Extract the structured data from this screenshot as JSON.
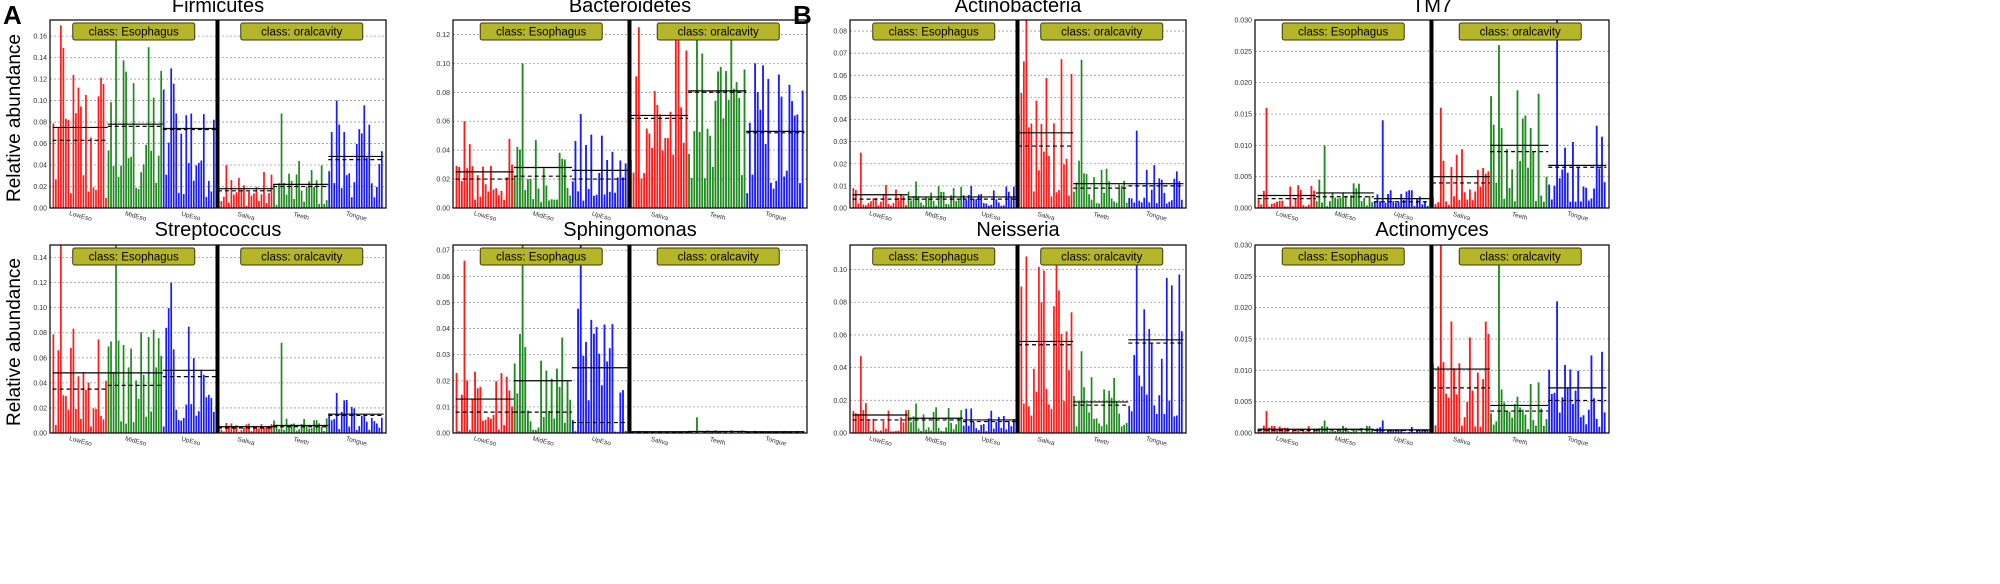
{
  "figure": {
    "panel_labels": [
      "A",
      "B"
    ],
    "ylabel": "Relative abundance",
    "class_labels": [
      "class: Esophagus",
      "class: oralcavity"
    ],
    "sample_groups": [
      "LowEso",
      "MidEso",
      "UpEso",
      "Saliva",
      "Teeth",
      "Tongue"
    ],
    "colors": {
      "red": "#ff1a1a",
      "green": "#1f8a1f",
      "blue": "#1a1aff",
      "badge": "#b5b52a",
      "badge_border": "#3a3a00"
    }
  },
  "chart_data": [
    {
      "type": "bar",
      "title": "Firmicutes",
      "yticks": [
        "0.00",
        "0.02",
        "0.04",
        "0.06",
        "0.08",
        "0.10",
        "0.12",
        "0.14",
        "0.16"
      ],
      "ylim": [
        0,
        0.175
      ],
      "categories": [
        "LowEso",
        "MidEso",
        "UpEso",
        "Saliva",
        "Teeth",
        "Tongue"
      ],
      "series": [
        {
          "name": "LowEso",
          "color": "red",
          "min": 0.005,
          "max": 0.17,
          "mean": 0.075,
          "median": 0.063
        },
        {
          "name": "MidEso",
          "color": "green",
          "min": 0.01,
          "max": 0.16,
          "mean": 0.078,
          "median": 0.076
        },
        {
          "name": "UpEso",
          "color": "blue",
          "min": 0.01,
          "max": 0.13,
          "mean": 0.074,
          "median": 0.073
        },
        {
          "name": "Saliva",
          "color": "red",
          "min": 0.002,
          "max": 0.04,
          "mean": 0.018,
          "median": 0.016
        },
        {
          "name": "Teeth",
          "color": "green",
          "min": 0.003,
          "max": 0.088,
          "mean": 0.022,
          "median": 0.02
        },
        {
          "name": "Tongue",
          "color": "blue",
          "min": 0.01,
          "max": 0.1,
          "mean": 0.048,
          "median": 0.045
        }
      ]
    },
    {
      "type": "bar",
      "title": "Bacteroidetes",
      "yticks": [
        "0.00",
        "0.02",
        "0.04",
        "0.06",
        "0.08",
        "0.10",
        "0.12"
      ],
      "ylim": [
        0,
        0.13
      ],
      "categories": [
        "LowEso",
        "MidEso",
        "UpEso",
        "Saliva",
        "Teeth",
        "Tongue"
      ],
      "series": [
        {
          "name": "LowEso",
          "color": "red",
          "min": 0.004,
          "max": 0.06,
          "mean": 0.025,
          "median": 0.02
        },
        {
          "name": "MidEso",
          "color": "green",
          "min": 0.004,
          "max": 0.1,
          "mean": 0.028,
          "median": 0.022
        },
        {
          "name": "UpEso",
          "color": "blue",
          "min": 0.004,
          "max": 0.065,
          "mean": 0.026,
          "median": 0.02
        },
        {
          "name": "Saliva",
          "color": "red",
          "min": 0.02,
          "max": 0.125,
          "mean": 0.064,
          "median": 0.062
        },
        {
          "name": "Teeth",
          "color": "green",
          "min": 0.02,
          "max": 0.12,
          "mean": 0.081,
          "median": 0.08
        },
        {
          "name": "Tongue",
          "color": "blue",
          "min": 0.01,
          "max": 0.1,
          "mean": 0.053,
          "median": 0.052
        }
      ]
    },
    {
      "type": "bar",
      "title": "Actinobacteria",
      "yticks": [
        "0.00",
        "0.01",
        "0.02",
        "0.03",
        "0.04",
        "0.05",
        "0.06",
        "0.07",
        "0.08"
      ],
      "ylim": [
        0,
        0.085
      ],
      "categories": [
        "LowEso",
        "MidEso",
        "UpEso",
        "Saliva",
        "Teeth",
        "Tongue"
      ],
      "series": [
        {
          "name": "LowEso",
          "color": "red",
          "min": 0.001,
          "max": 0.025,
          "mean": 0.006,
          "median": 0.004
        },
        {
          "name": "MidEso",
          "color": "green",
          "min": 0.001,
          "max": 0.012,
          "mean": 0.005,
          "median": 0.004
        },
        {
          "name": "UpEso",
          "color": "blue",
          "min": 0.001,
          "max": 0.01,
          "mean": 0.005,
          "median": 0.004
        },
        {
          "name": "Saliva",
          "color": "red",
          "min": 0.005,
          "max": 0.085,
          "mean": 0.034,
          "median": 0.028
        },
        {
          "name": "Teeth",
          "color": "green",
          "min": 0.002,
          "max": 0.067,
          "mean": 0.011,
          "median": 0.009
        },
        {
          "name": "Tongue",
          "color": "blue",
          "min": 0.002,
          "max": 0.035,
          "mean": 0.011,
          "median": 0.01
        }
      ]
    },
    {
      "type": "bar",
      "title": "TM7",
      "yticks": [
        "0.000",
        "0.005",
        "0.010",
        "0.015",
        "0.020",
        "0.025",
        "0.030"
      ],
      "ylim": [
        0,
        0.03
      ],
      "categories": [
        "LowEso",
        "MidEso",
        "UpEso",
        "Saliva",
        "Teeth",
        "Tongue"
      ],
      "series": [
        {
          "name": "LowEso",
          "color": "red",
          "min": 0.0002,
          "max": 0.016,
          "mean": 0.002,
          "median": 0.0015
        },
        {
          "name": "MidEso",
          "color": "green",
          "min": 0.0002,
          "max": 0.01,
          "mean": 0.0024,
          "median": 0.0018
        },
        {
          "name": "UpEso",
          "color": "blue",
          "min": 0.0002,
          "max": 0.014,
          "mean": 0.0015,
          "median": 0.001
        },
        {
          "name": "Saliva",
          "color": "red",
          "min": 0.0005,
          "max": 0.016,
          "mean": 0.005,
          "median": 0.004
        },
        {
          "name": "Teeth",
          "color": "green",
          "min": 0.001,
          "max": 0.026,
          "mean": 0.01,
          "median": 0.009
        },
        {
          "name": "Tongue",
          "color": "blue",
          "min": 0.001,
          "max": 0.03,
          "mean": 0.0068,
          "median": 0.0065
        }
      ]
    },
    {
      "type": "bar",
      "title": "Streptococcus",
      "yticks": [
        "0.00",
        "0.02",
        "0.04",
        "0.06",
        "0.08",
        "0.10",
        "0.12",
        "0.14"
      ],
      "ylim": [
        0,
        0.15
      ],
      "categories": [
        "LowEso",
        "MidEso",
        "UpEso",
        "Saliva",
        "Teeth",
        "Tongue"
      ],
      "series": [
        {
          "name": "LowEso",
          "color": "red",
          "min": 0.005,
          "max": 0.15,
          "mean": 0.048,
          "median": 0.035
        },
        {
          "name": "MidEso",
          "color": "green",
          "min": 0.005,
          "max": 0.15,
          "mean": 0.048,
          "median": 0.038
        },
        {
          "name": "UpEso",
          "color": "blue",
          "min": 0.005,
          "max": 0.12,
          "mean": 0.05,
          "median": 0.045
        },
        {
          "name": "Saliva",
          "color": "red",
          "min": 0.001,
          "max": 0.008,
          "mean": 0.005,
          "median": 0.004
        },
        {
          "name": "Teeth",
          "color": "green",
          "min": 0.001,
          "max": 0.072,
          "mean": 0.006,
          "median": 0.005
        },
        {
          "name": "Tongue",
          "color": "blue",
          "min": 0.002,
          "max": 0.032,
          "mean": 0.015,
          "median": 0.014
        }
      ]
    },
    {
      "type": "bar",
      "title": "Sphingomonas",
      "yticks": [
        "0.00",
        "0.01",
        "0.02",
        "0.03",
        "0.04",
        "0.05",
        "0.06",
        "0.07"
      ],
      "ylim": [
        0,
        0.072
      ],
      "categories": [
        "LowEso",
        "MidEso",
        "UpEso",
        "Saliva",
        "Teeth",
        "Tongue"
      ],
      "series": [
        {
          "name": "LowEso",
          "color": "red",
          "min": 0.0005,
          "max": 0.066,
          "mean": 0.013,
          "median": 0.008
        },
        {
          "name": "MidEso",
          "color": "green",
          "min": 0.0005,
          "max": 0.072,
          "mean": 0.02,
          "median": 0.008
        },
        {
          "name": "UpEso",
          "color": "blue",
          "min": 0.0005,
          "max": 0.072,
          "mean": 0.025,
          "median": 0.004
        },
        {
          "name": "Saliva",
          "color": "red",
          "min": 0,
          "max": 0.0008,
          "mean": 0.0005,
          "median": 0.0004
        },
        {
          "name": "Teeth",
          "color": "green",
          "min": 0,
          "max": 0.006,
          "mean": 0.0006,
          "median": 0.0005
        },
        {
          "name": "Tongue",
          "color": "blue",
          "min": 0,
          "max": 0.0008,
          "mean": 0.0005,
          "median": 0.0004
        }
      ]
    },
    {
      "type": "bar",
      "title": "Neisseria",
      "yticks": [
        "0.00",
        "0.02",
        "0.04",
        "0.06",
        "0.08",
        "0.10"
      ],
      "ylim": [
        0,
        0.115
      ],
      "categories": [
        "LowEso",
        "MidEso",
        "UpEso",
        "Saliva",
        "Teeth",
        "Tongue"
      ],
      "series": [
        {
          "name": "LowEso",
          "color": "red",
          "min": 0.001,
          "max": 0.047,
          "mean": 0.011,
          "median": 0.008
        },
        {
          "name": "MidEso",
          "color": "green",
          "min": 0.001,
          "max": 0.018,
          "mean": 0.009,
          "median": 0.008
        },
        {
          "name": "UpEso",
          "color": "blue",
          "min": 0.001,
          "max": 0.015,
          "mean": 0.008,
          "median": 0.007
        },
        {
          "name": "Saliva",
          "color": "red",
          "min": 0.01,
          "max": 0.108,
          "mean": 0.056,
          "median": 0.054
        },
        {
          "name": "Teeth",
          "color": "green",
          "min": 0.004,
          "max": 0.05,
          "mean": 0.019,
          "median": 0.017
        },
        {
          "name": "Tongue",
          "color": "blue",
          "min": 0.01,
          "max": 0.112,
          "mean": 0.057,
          "median": 0.055
        }
      ]
    },
    {
      "type": "bar",
      "title": "Actinomyces",
      "yticks": [
        "0.000",
        "0.005",
        "0.010",
        "0.015",
        "0.020",
        "0.025",
        "0.030"
      ],
      "ylim": [
        0,
        0.03
      ],
      "categories": [
        "LowEso",
        "MidEso",
        "UpEso",
        "Saliva",
        "Teeth",
        "Tongue"
      ],
      "series": [
        {
          "name": "LowEso",
          "color": "red",
          "min": 0.0001,
          "max": 0.0035,
          "mean": 0.0006,
          "median": 0.0004
        },
        {
          "name": "MidEso",
          "color": "green",
          "min": 0.0001,
          "max": 0.002,
          "mean": 0.0006,
          "median": 0.0005
        },
        {
          "name": "UpEso",
          "color": "blue",
          "min": 0.0001,
          "max": 0.002,
          "mean": 0.0005,
          "median": 0.0004
        },
        {
          "name": "Saliva",
          "color": "red",
          "min": 0.001,
          "max": 0.03,
          "mean": 0.0102,
          "median": 0.0072
        },
        {
          "name": "Teeth",
          "color": "green",
          "min": 0.0005,
          "max": 0.028,
          "mean": 0.0044,
          "median": 0.0035
        },
        {
          "name": "Tongue",
          "color": "blue",
          "min": 0.001,
          "max": 0.021,
          "mean": 0.0072,
          "median": 0.0052
        }
      ]
    }
  ]
}
